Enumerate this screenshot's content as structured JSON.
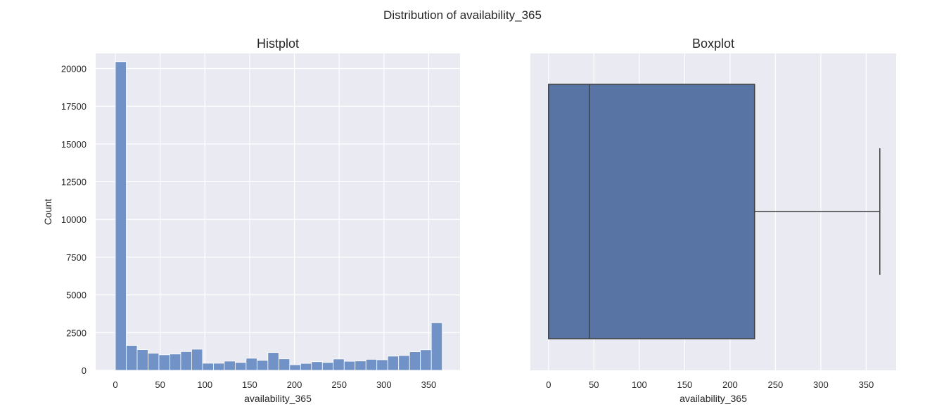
{
  "suptitle": "Distribution of availability_365",
  "chart_data": [
    {
      "type": "histogram",
      "title": "Histplot",
      "xlabel": "availability_365",
      "ylabel": "Count",
      "xlim": [
        -22,
        385
      ],
      "ylim": [
        0,
        21000
      ],
      "xticks": [
        0,
        50,
        100,
        150,
        200,
        250,
        300,
        350
      ],
      "yticks": [
        0,
        2500,
        5000,
        7500,
        10000,
        12500,
        15000,
        17500,
        20000
      ],
      "bin_width": 12.17,
      "bin_start": 0,
      "bar_color": "#7192c6",
      "values": [
        20450,
        1650,
        1370,
        1130,
        1030,
        1080,
        1240,
        1400,
        470,
        470,
        610,
        520,
        800,
        660,
        1180,
        760,
        370,
        460,
        570,
        520,
        750,
        600,
        620,
        730,
        700,
        940,
        980,
        1230,
        1360,
        3150
      ],
      "grid": true,
      "background": "#eaeaf2"
    },
    {
      "type": "boxplot",
      "title": "Boxplot",
      "xlabel": "availability_365",
      "xlim": [
        -20,
        383
      ],
      "xticks": [
        0,
        50,
        100,
        150,
        200,
        250,
        300,
        350
      ],
      "min": 0,
      "q1": 0,
      "median": 45,
      "q3": 227,
      "max": 365,
      "box_color": "#5874a4",
      "line_color": "#3f3f3f",
      "grid": true,
      "background": "#eaeaf2"
    }
  ]
}
